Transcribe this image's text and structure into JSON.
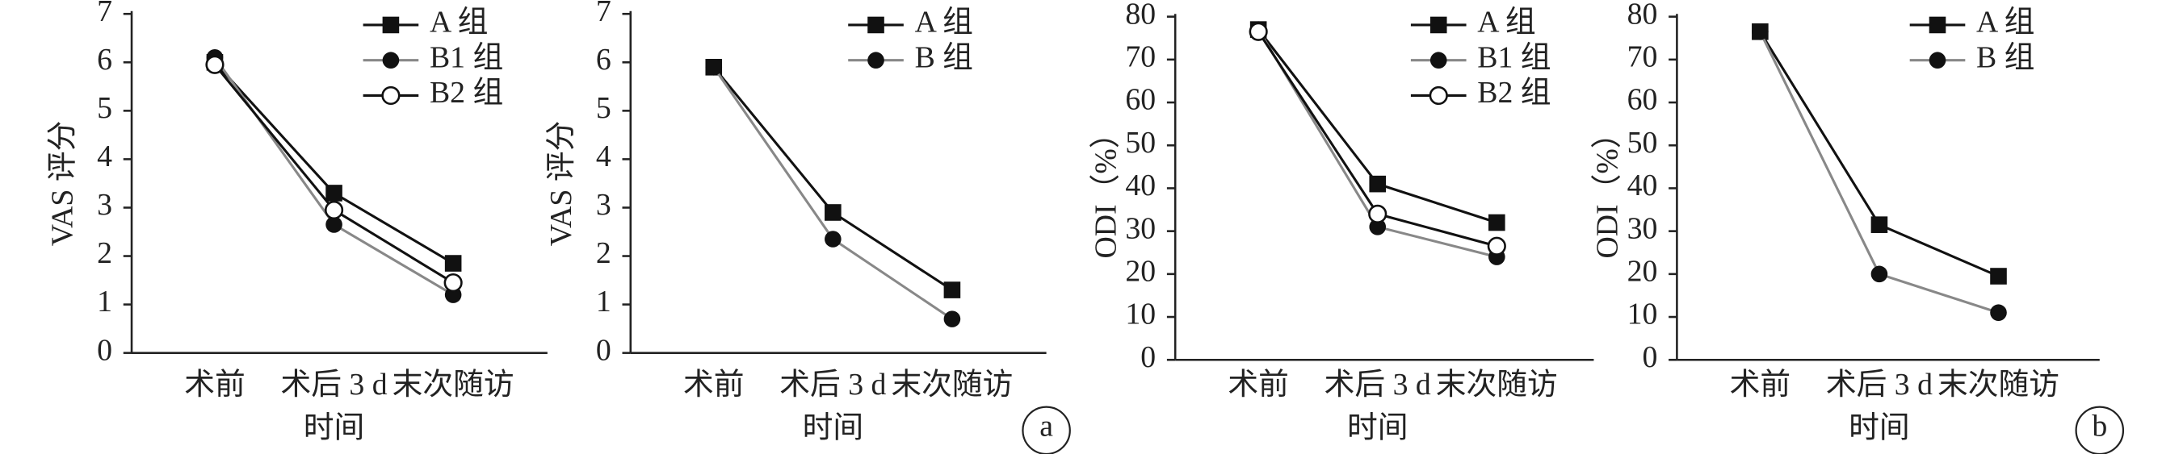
{
  "chart_data": [
    {
      "type": "line",
      "ylabel": "VAS 评分",
      "xlabel": "时间",
      "categories": [
        "术前",
        "术后 3 d",
        "末次随访"
      ],
      "ylim": [
        0,
        7
      ],
      "yticks": [
        0,
        1,
        2,
        3,
        4,
        5,
        6,
        7
      ],
      "series": [
        {
          "name": "A 组",
          "color": "#111111",
          "marker": "square",
          "values": [
            6.0,
            3.3,
            1.85
          ]
        },
        {
          "name": "B1 组",
          "color": "#888888",
          "marker": "circle",
          "values": [
            6.1,
            2.65,
            1.2
          ]
        },
        {
          "name": "B2 组",
          "color": "#111111",
          "marker": "open-circle",
          "values": [
            5.95,
            2.95,
            1.45
          ]
        }
      ]
    },
    {
      "type": "line",
      "ylabel": "VAS 评分",
      "xlabel": "时间",
      "categories": [
        "术前",
        "术后 3 d",
        "末次随访"
      ],
      "ylim": [
        0,
        7
      ],
      "yticks": [
        0,
        1,
        2,
        3,
        4,
        5,
        6,
        7
      ],
      "panel_label": "a",
      "series": [
        {
          "name": "A 组",
          "color": "#111111",
          "marker": "square",
          "values": [
            5.9,
            2.9,
            1.3
          ]
        },
        {
          "name": "B 组",
          "color": "#888888",
          "marker": "circle",
          "values": [
            5.9,
            2.35,
            0.7
          ]
        }
      ]
    },
    {
      "type": "line",
      "ylabel": "ODI（%）",
      "xlabel": "时间",
      "categories": [
        "术前",
        "术后 3 d",
        "末次随访"
      ],
      "ylim": [
        0,
        80
      ],
      "yticks": [
        0,
        10,
        20,
        30,
        40,
        50,
        60,
        70,
        80
      ],
      "series": [
        {
          "name": "A 组",
          "color": "#111111",
          "marker": "square",
          "values": [
            77,
            41,
            32
          ]
        },
        {
          "name": "B1 组",
          "color": "#888888",
          "marker": "circle",
          "values": [
            77,
            31,
            24
          ]
        },
        {
          "name": "B2 组",
          "color": "#111111",
          "marker": "open-circle",
          "values": [
            76.5,
            34,
            26.5
          ]
        }
      ]
    },
    {
      "type": "line",
      "ylabel": "ODI（%）",
      "xlabel": "时间",
      "categories": [
        "术前",
        "术后 3 d",
        "末次随访"
      ],
      "ylim": [
        0,
        80
      ],
      "yticks": [
        0,
        10,
        20,
        30,
        40,
        50,
        60,
        70,
        80
      ],
      "panel_label": "b",
      "series": [
        {
          "name": "A 组",
          "color": "#111111",
          "marker": "square",
          "values": [
            76.5,
            31.5,
            19.5
          ]
        },
        {
          "name": "B 组",
          "color": "#888888",
          "marker": "circle",
          "values": [
            76.5,
            20,
            11
          ]
        }
      ]
    }
  ]
}
